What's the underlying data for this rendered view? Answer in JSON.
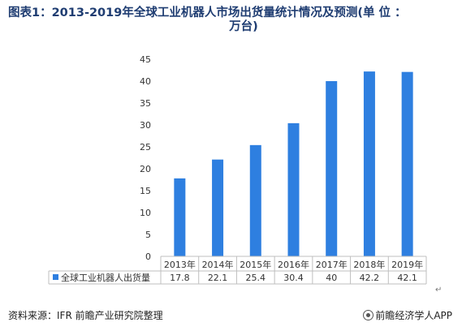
{
  "title_line1": "图表1：2013-2019年全球工业机器人市场出货量统计情况及预测(单 位 ：",
  "title_line2": "万台)",
  "source_text": "资料来源：IFR 前瞻产业研究院整理",
  "brand_text": "前瞻经济学人APP",
  "brand_icon": "qianzhan-logo-icon",
  "return_mark": "↵",
  "colors": {
    "bar": "#2e7fe0",
    "axis": "#bfbfbf",
    "text": "#333333",
    "title": "#1f3d72"
  },
  "chart_data": {
    "type": "bar",
    "title": "图表1：2013-2019年全球工业机器人市场出货量统计情况及预测(单 位 ：万台)",
    "categories": [
      "2013年",
      "2014年",
      "2015年",
      "2016年",
      "2017年",
      "2018年",
      "2019年"
    ],
    "series": [
      {
        "name": "全球工业机器人出货量",
        "values": [
          17.8,
          22.1,
          25.4,
          30.4,
          40,
          42.2,
          42.1
        ],
        "table_labels": [
          "17.8",
          "22.1",
          "25.4",
          "30.4",
          "40",
          "42.2",
          "42.1"
        ]
      }
    ],
    "yticks": [
      0,
      5,
      10,
      15,
      20,
      25,
      30,
      35,
      40,
      45
    ],
    "ylim": [
      0,
      45
    ],
    "legend": "data-table-left",
    "grid": false
  }
}
